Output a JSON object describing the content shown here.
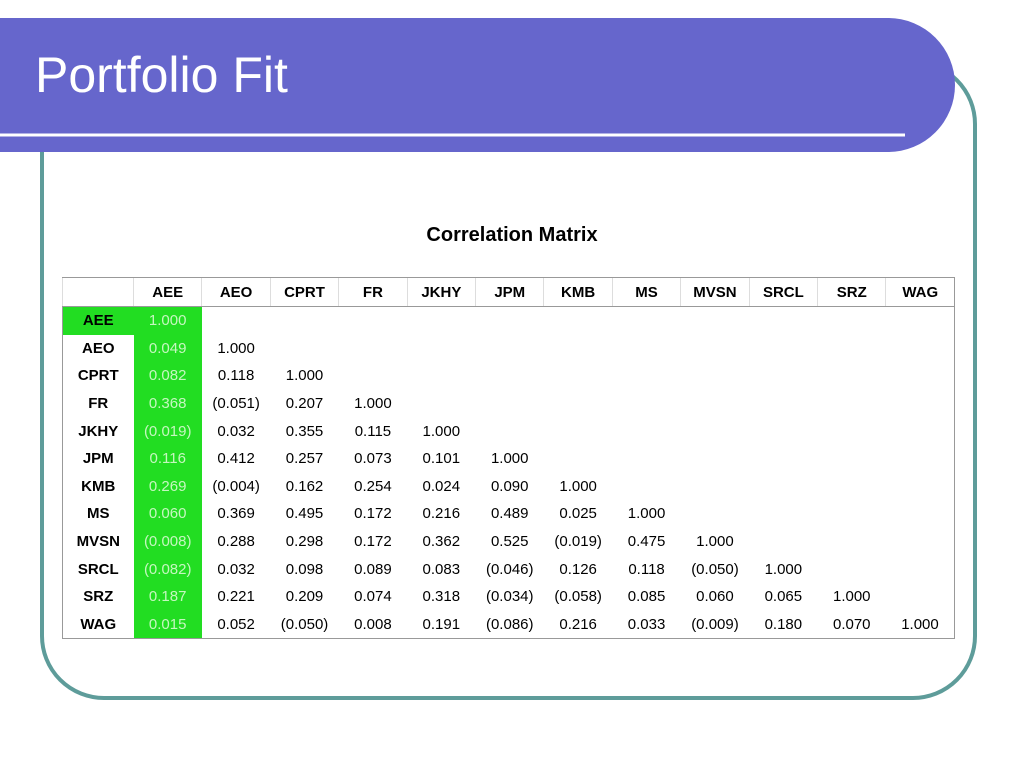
{
  "header": {
    "title": "Portfolio Fit"
  },
  "table": {
    "caption": "Correlation Matrix",
    "columns": [
      "AEE",
      "AEO",
      "CPRT",
      "FR",
      "JKHY",
      "JPM",
      "KMB",
      "MS",
      "MVSN",
      "SRCL",
      "SRZ",
      "WAG"
    ],
    "rows": [
      {
        "label": "AEE",
        "cells": [
          "1.000"
        ]
      },
      {
        "label": "AEO",
        "cells": [
          "0.049",
          "1.000"
        ]
      },
      {
        "label": "CPRT",
        "cells": [
          "0.082",
          "0.118",
          "1.000"
        ]
      },
      {
        "label": "FR",
        "cells": [
          "0.368",
          "(0.051)",
          "0.207",
          "1.000"
        ]
      },
      {
        "label": "JKHY",
        "cells": [
          "(0.019)",
          "0.032",
          "0.355",
          "0.115",
          "1.000"
        ]
      },
      {
        "label": "JPM",
        "cells": [
          "0.116",
          "0.412",
          "0.257",
          "0.073",
          "0.101",
          "1.000"
        ]
      },
      {
        "label": "KMB",
        "cells": [
          "0.269",
          "(0.004)",
          "0.162",
          "0.254",
          "0.024",
          "0.090",
          "1.000"
        ]
      },
      {
        "label": "MS",
        "cells": [
          "0.060",
          "0.369",
          "0.495",
          "0.172",
          "0.216",
          "0.489",
          "0.025",
          "1.000"
        ]
      },
      {
        "label": "MVSN",
        "cells": [
          "(0.008)",
          "0.288",
          "0.298",
          "0.172",
          "0.362",
          "0.525",
          "(0.019)",
          "0.475",
          "1.000"
        ]
      },
      {
        "label": "SRCL",
        "cells": [
          "(0.082)",
          "0.032",
          "0.098",
          "0.089",
          "0.083",
          "(0.046)",
          "0.126",
          "0.118",
          "(0.050)",
          "1.000"
        ]
      },
      {
        "label": "SRZ",
        "cells": [
          "0.187",
          "0.221",
          "0.209",
          "0.074",
          "0.318",
          "(0.034)",
          "(0.058)",
          "0.085",
          "0.060",
          "0.065",
          "1.000"
        ]
      },
      {
        "label": "WAG",
        "cells": [
          "0.015",
          "0.052",
          "(0.050)",
          "0.008",
          "0.191",
          "(0.086)",
          "0.216",
          "0.033",
          "(0.009)",
          "0.180",
          "0.070",
          "1.000"
        ]
      }
    ]
  }
}
